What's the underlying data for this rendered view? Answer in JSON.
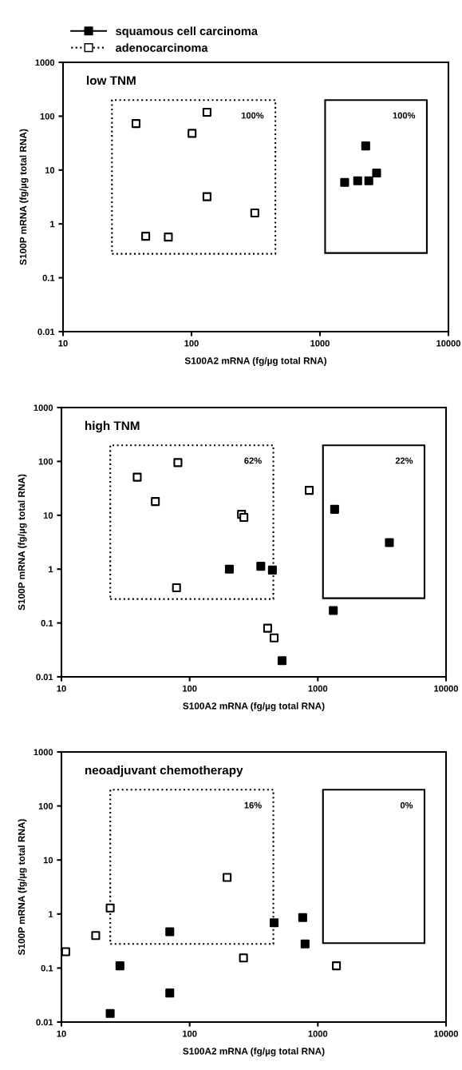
{
  "chart_data": [
    {
      "type": "scatter",
      "title": "low TNM",
      "xlabel": "S100A2 mRNA (fg/µg total RNA)",
      "ylabel": "S100P mRNA (fg/µg total RNA)",
      "log": "xy",
      "xlim": [
        10,
        10000
      ],
      "ylim": [
        0.01,
        1000
      ],
      "xticks": [
        10,
        100,
        1000,
        10000
      ],
      "yticks": [
        0.01,
        0.1,
        1,
        10,
        100,
        1000
      ],
      "legend": "top left",
      "series": [
        {
          "name": "squamous cell carcinoma",
          "color": "#000000",
          "marker": "square",
          "line_style": "solid",
          "x": [
            1556,
            1966,
            2400,
            2270,
            2760
          ],
          "values": [
            5.9,
            6.3,
            6.3,
            28,
            8.8
          ]
        },
        {
          "name": "adenocarcinoma",
          "color": "#ffffff",
          "marker": "square",
          "line_style": "dotted",
          "x": [
            37,
            44,
            66,
            101,
            132,
            132,
            311
          ],
          "values": [
            73,
            0.59,
            0.57,
            48,
            118,
            3.2,
            1.6
          ]
        }
      ],
      "annotations": [
        "100%",
        "100%"
      ]
    },
    {
      "type": "scatter",
      "title": "high TNM",
      "xlabel": "S100A2 mRNA (fg/µg total RNA)",
      "ylabel": "S100P mRNA (fg/µg total RNA)",
      "log": "xy",
      "xlim": [
        10,
        10000
      ],
      "ylim": [
        0.01,
        1000
      ],
      "xticks": [
        10,
        100,
        1000,
        10000
      ],
      "yticks": [
        0.01,
        0.1,
        1,
        10,
        100,
        1000
      ],
      "series": [
        {
          "color": "#000000",
          "marker": "square",
          "x": [
            204,
            359,
            442,
            526,
            1352,
            3614,
            1320
          ],
          "values": [
            1.0,
            1.13,
            0.96,
            0.02,
            12.9,
            3.1,
            0.17
          ]
        },
        {
          "color": "#ffffff",
          "marker": "square",
          "x": [
            39,
            54,
            81,
            79,
            254,
            265,
            857,
            406,
            456
          ],
          "values": [
            51,
            18,
            95,
            0.45,
            10.4,
            9.1,
            29,
            0.08,
            0.053
          ]
        }
      ],
      "annotations": [
        "62%",
        "22%"
      ]
    },
    {
      "type": "scatter",
      "title": "neoadjuvant chemotherapy",
      "xlabel": "S100A2 mRNA (fg/µg total RNA)",
      "ylabel": "S100P mRNA (fg/µg total RNA)",
      "log": "xy",
      "xlim": [
        10,
        10000
      ],
      "ylim": [
        0.01,
        1000
      ],
      "xticks": [
        10,
        100,
        1000,
        10000
      ],
      "yticks": [
        0.01,
        0.1,
        1,
        10,
        100,
        1000
      ],
      "series": [
        {
          "color": "#000000",
          "marker": "square",
          "x": [
            24,
            28.6,
            70,
            70,
            456,
            762,
            795
          ],
          "values": [
            0.0144,
            0.11,
            0.47,
            0.0345,
            0.69,
            0.86,
            0.28
          ]
        },
        {
          "color": "#ffffff",
          "marker": "square",
          "x": [
            10.8,
            18.5,
            24,
            196,
            263,
            1396
          ],
          "values": [
            0.2,
            0.4,
            1.29,
            4.75,
            0.154,
            0.11
          ]
        }
      ],
      "annotations": [
        "16%",
        "0%"
      ]
    }
  ]
}
